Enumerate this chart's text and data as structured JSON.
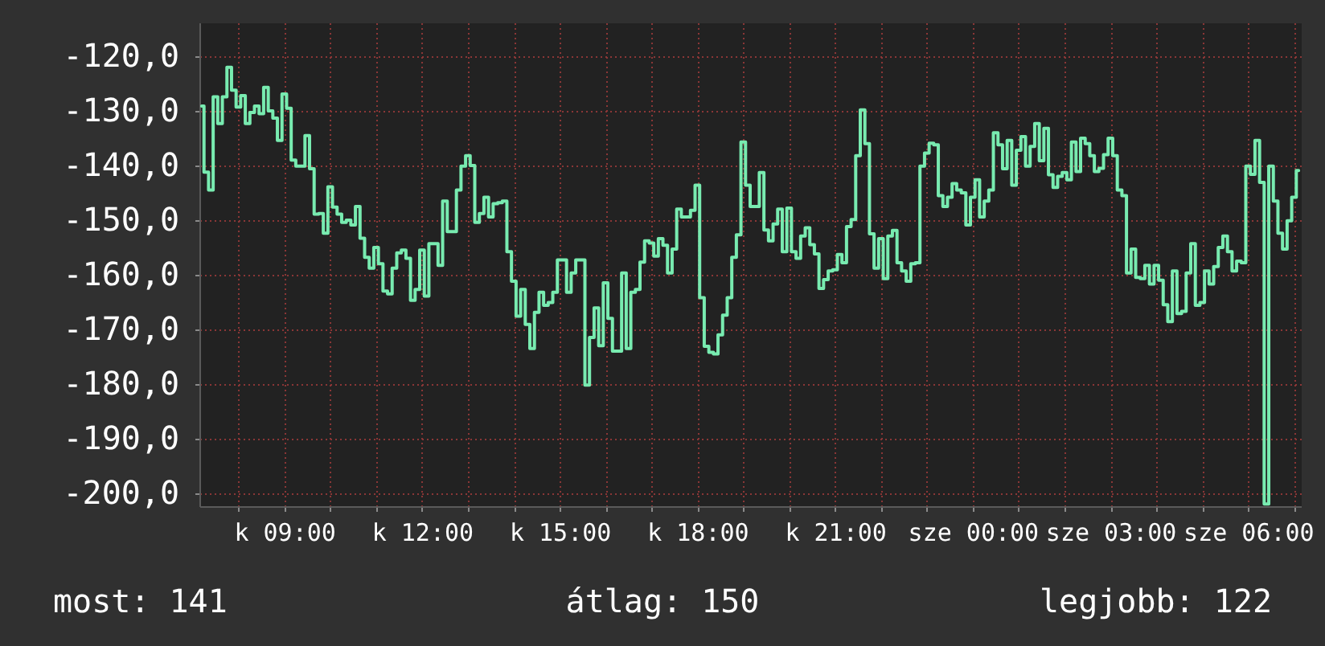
{
  "chart_data": {
    "type": "step",
    "categories": [
      null,
      null,
      null,
      null,
      null,
      null,
      null,
      null,
      null,
      null,
      null,
      null,
      null,
      null,
      null,
      null,
      null,
      null,
      "k 09:00",
      null,
      null,
      null,
      null,
      null,
      null,
      null,
      null,
      null,
      null,
      null,
      null,
      null,
      null,
      null,
      null,
      null,
      null,
      null,
      null,
      null,
      null,
      null,
      null,
      null,
      null,
      null,
      null,
      null,
      "k 12:00",
      null,
      null,
      null,
      null,
      null,
      null,
      null,
      null,
      null,
      null,
      null,
      null,
      null,
      null,
      null,
      null,
      null,
      null,
      null,
      null,
      null,
      null,
      null,
      null,
      null,
      null,
      null,
      null,
      null,
      "k 15:00",
      null,
      null,
      null,
      null,
      null,
      null,
      null,
      null,
      null,
      null,
      null,
      null,
      null,
      null,
      null,
      null,
      null,
      null,
      null,
      null,
      null,
      null,
      null,
      null,
      null,
      null,
      null,
      null,
      null,
      "k 18:00",
      null,
      null,
      null,
      null,
      null,
      null,
      null,
      null,
      null,
      null,
      null,
      null,
      null,
      null,
      null,
      null,
      null,
      null,
      null,
      null,
      null,
      null,
      null,
      null,
      null,
      null,
      null,
      null,
      null,
      "k 21:00",
      null,
      null,
      null,
      null,
      null,
      null,
      null,
      null,
      null,
      null,
      null,
      null,
      null,
      null,
      null,
      null,
      null,
      null,
      null,
      null,
      null,
      null,
      null,
      null,
      null,
      null,
      null,
      null,
      null,
      "sze 00:00",
      null,
      null,
      null,
      null,
      null,
      null,
      null,
      null,
      null,
      null,
      null,
      null,
      null,
      null,
      null,
      null,
      null,
      null,
      null,
      null,
      null,
      null,
      null,
      null,
      null,
      null,
      null,
      null,
      null,
      "sze 03:00",
      null,
      null,
      null,
      null,
      null,
      null,
      null,
      null,
      null,
      null,
      null,
      null,
      null,
      null,
      null,
      null,
      null,
      null,
      null,
      null,
      null,
      null,
      null,
      null,
      null,
      null,
      null,
      null,
      null,
      "sze 06:00",
      null,
      null,
      null,
      null,
      null,
      null,
      null,
      null,
      null,
      null,
      null
    ],
    "series": [
      {
        "color": "#78ebb0",
        "values": [
          -129.1,
          -141.2,
          -144.5,
          -127.4,
          -132.3,
          -127.4,
          -122.0,
          -126.2,
          -129.3,
          -127.2,
          -132.3,
          -130.3,
          -129.1,
          -130.5,
          -125.7,
          -130.0,
          -131.3,
          -135.4,
          -126.9,
          -129.5,
          -139.0,
          -140.1,
          -140.1,
          -134.5,
          -140.6,
          -148.9,
          -148.8,
          -152.4,
          -143.9,
          -147.6,
          -148.9,
          -150.4,
          -150.0,
          -150.9,
          -147.5,
          -153.3,
          -156.8,
          -158.8,
          -155.0,
          -158.0,
          -163.0,
          -163.5,
          -158.8,
          -156.0,
          -155.5,
          -157.0,
          -164.7,
          -162.7,
          -155.5,
          -163.9,
          -154.3,
          -154.3,
          -158.3,
          -146.5,
          -152.1,
          -152.1,
          -144.5,
          -140.1,
          -138.2,
          -140.0,
          -150.4,
          -148.8,
          -145.8,
          -149.4,
          -147.0,
          -146.8,
          -146.5,
          -155.8,
          -161.2,
          -167.6,
          -162.7,
          -169.1,
          -173.5,
          -166.9,
          -163.2,
          -165.6,
          -165.1,
          -163.2,
          -157.3,
          -157.3,
          -163.2,
          -159.7,
          -157.3,
          -157.3,
          -180.2,
          -171.5,
          -166.1,
          -173.0,
          -161.5,
          -168.0,
          -174.0,
          -174.0,
          -159.7,
          -173.5,
          -163.2,
          -162.7,
          -157.7,
          -153.8,
          -154.2,
          -156.6,
          -153.4,
          -154.6,
          -159.7,
          -155.3,
          -148.0,
          -149.4,
          -149.4,
          -148.2,
          -143.6,
          -164.2,
          -173.1,
          -174.2,
          -174.5,
          -171.0,
          -167.4,
          -164.2,
          -156.8,
          -152.7,
          -135.7,
          -143.6,
          -147.5,
          -147.5,
          -141.3,
          -151.8,
          -153.8,
          -150.7,
          -148.0,
          -155.8,
          -147.8,
          -155.8,
          -157.0,
          -152.9,
          -151.4,
          -154.5,
          -156.2,
          -162.5,
          -160.9,
          -159.3,
          -159.1,
          -156.3,
          -157.8,
          -151.2,
          -149.9,
          -138.2,
          -129.8,
          -136.0,
          -152.5,
          -158.8,
          -153.4,
          -160.7,
          -152.9,
          -151.9,
          -157.8,
          -159.3,
          -161.2,
          -158.0,
          -157.8,
          -140.1,
          -137.7,
          -135.9,
          -136.2,
          -145.5,
          -147.5,
          -145.8,
          -143.3,
          -144.5,
          -145.0,
          -150.9,
          -145.8,
          -142.6,
          -149.4,
          -146.5,
          -144.5,
          -134.0,
          -136.2,
          -140.6,
          -135.4,
          -143.6,
          -137.2,
          -134.7,
          -140.1,
          -136.5,
          -132.3,
          -139.1,
          -133.2,
          -141.7,
          -144.0,
          -142.0,
          -141.3,
          -142.6,
          -135.7,
          -141.1,
          -135.0,
          -136.0,
          -138.2,
          -141.1,
          -140.5,
          -138.0,
          -135.0,
          -138.2,
          -144.5,
          -145.5,
          -159.7,
          -155.3,
          -160.5,
          -160.7,
          -158.3,
          -161.7,
          -158.3,
          -161.0,
          -165.5,
          -168.6,
          -159.3,
          -167.1,
          -166.7,
          -159.7,
          -154.3,
          -165.6,
          -165.1,
          -159.3,
          -161.7,
          -158.5,
          -155.0,
          -152.9,
          -155.8,
          -159.3,
          -157.5,
          -157.8,
          -140.1,
          -141.6,
          -135.4,
          -143.1,
          -202.0,
          -140.1,
          -146.5,
          -152.4,
          -155.3,
          -150.1,
          -145.8,
          -140.9
        ]
      }
    ],
    "ylim": [
      -202.4,
      -113.8
    ],
    "yticks": [
      {
        "value": -200,
        "label": "-200,0"
      },
      {
        "value": -190,
        "label": "-190,0"
      },
      {
        "value": -180,
        "label": "-180,0"
      },
      {
        "value": -170,
        "label": "-170,0"
      },
      {
        "value": -160,
        "label": "-160,0"
      },
      {
        "value": -150,
        "label": "-150,0"
      },
      {
        "value": -140,
        "label": "-140,0"
      },
      {
        "value": -130,
        "label": "-130,0"
      },
      {
        "value": -120,
        "label": "-120,0"
      }
    ],
    "grid": true,
    "annotations": [
      "most: 141",
      "átlag: 150",
      "legjobb: 122"
    ]
  }
}
